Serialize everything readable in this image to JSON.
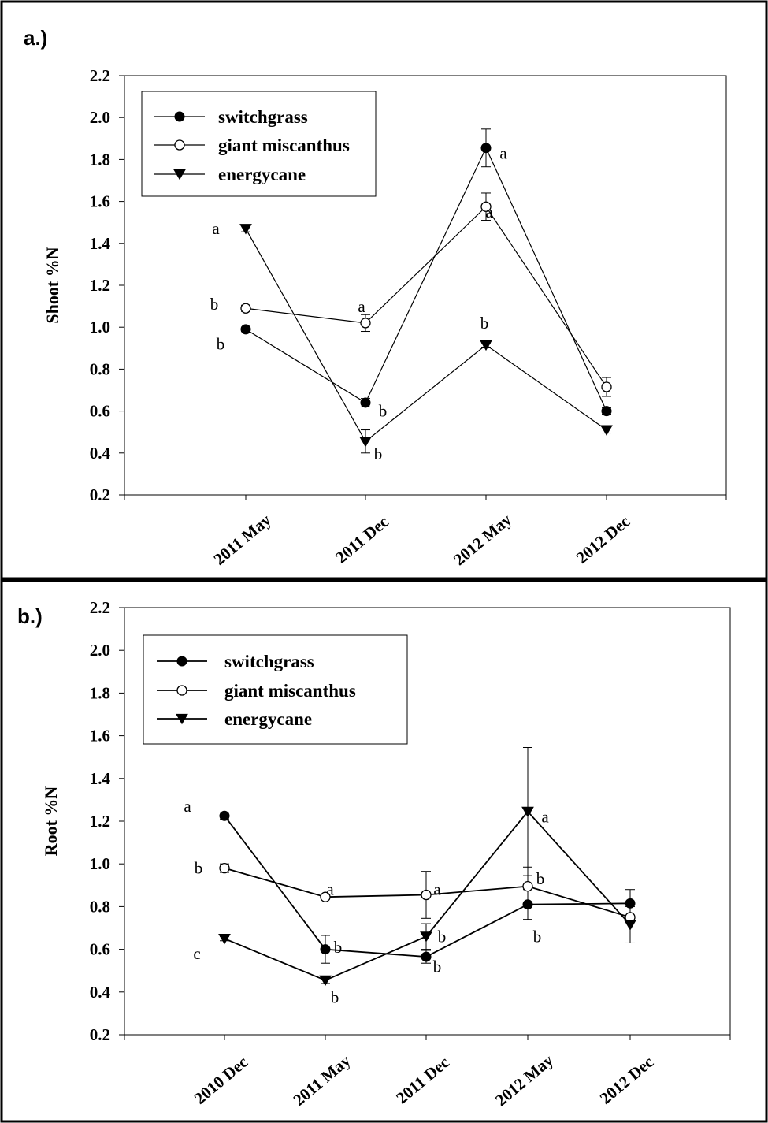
{
  "chart_data": [
    {
      "type": "line",
      "panel_label": "a.)",
      "ylabel": "Shoot %N",
      "ylim": [
        0.2,
        2.2
      ],
      "yticks": [
        "0.2",
        "0.4",
        "0.6",
        "0.8",
        "1.0",
        "1.2",
        "1.4",
        "1.6",
        "1.8",
        "2.0",
        "2.2"
      ],
      "categories": [
        "2011 May",
        "2011 Dec",
        "2012 May",
        "2012 Dec"
      ],
      "legend_position": "top-left",
      "series": [
        {
          "name": "switchgrass",
          "marker": "filled-circle",
          "values": [
            0.99,
            0.64,
            1.855,
            0.6
          ],
          "errors": [
            0.01,
            0.02,
            0.09,
            0.015
          ]
        },
        {
          "name": "giant miscanthus",
          "marker": "open-circle",
          "values": [
            1.09,
            1.02,
            1.575,
            0.715
          ],
          "errors": [
            0.015,
            0.04,
            0.065,
            0.045
          ]
        },
        {
          "name": "energycane",
          "marker": "triangle-down",
          "values": [
            1.47,
            0.455,
            0.915,
            0.51
          ],
          "errors": [
            0.015,
            0.055,
            0.01,
            0.015
          ]
        }
      ],
      "annotations": [
        {
          "text": "a",
          "category": 0,
          "value": 1.47
        },
        {
          "text": "b",
          "category": 0,
          "value": 1.11
        },
        {
          "text": "b",
          "category": 0,
          "value": 0.92
        },
        {
          "text": "a",
          "category": 1,
          "value": 1.06
        },
        {
          "text": "b",
          "category": 1,
          "value": 0.6
        },
        {
          "text": "b",
          "category": 1,
          "value": 0.41
        },
        {
          "text": "a",
          "category": 2,
          "value": 1.83
        },
        {
          "text": "a",
          "category": 2,
          "value": 1.55
        },
        {
          "text": "b",
          "category": 2,
          "value": 0.99
        }
      ]
    },
    {
      "type": "line",
      "panel_label": "b.)",
      "ylabel": "Root %N",
      "ylim": [
        0.2,
        2.2
      ],
      "yticks": [
        "0.2",
        "0.4",
        "0.6",
        "0.8",
        "1.0",
        "1.2",
        "1.4",
        "1.6",
        "1.8",
        "2.0",
        "2.2"
      ],
      "categories": [
        "2010 Dec",
        "2011 May",
        "2011 Dec",
        "2012 May",
        "2012 Dec"
      ],
      "legend_position": "top-left",
      "series": [
        {
          "name": "switchgrass",
          "marker": "filled-circle",
          "values": [
            1.225,
            0.6,
            0.565,
            0.81,
            0.815
          ],
          "errors": [
            0.015,
            0.065,
            0.03,
            0.07,
            0.065
          ]
        },
        {
          "name": "giant miscanthus",
          "marker": "open-circle",
          "values": [
            0.98,
            0.845,
            0.855,
            0.895,
            0.75
          ],
          "errors": [
            0.02,
            0.01,
            0.11,
            0.09,
            0.02
          ]
        },
        {
          "name": "energycane",
          "marker": "triangle-down",
          "values": [
            0.65,
            0.455,
            0.66,
            1.245,
            0.715
          ],
          "errors": [
            0.01,
            0.015,
            0.06,
            0.3,
            0.085
          ]
        }
      ],
      "annotations": [
        {
          "text": "a",
          "category": 0,
          "value": 1.27
        },
        {
          "text": "b",
          "category": 0,
          "value": 0.98
        },
        {
          "text": "c",
          "category": 0,
          "value": 0.58
        },
        {
          "text": "a",
          "category": 1,
          "value": 0.88
        },
        {
          "text": "b",
          "category": 1,
          "value": 0.61
        },
        {
          "text": "b",
          "category": 1,
          "value": 0.39
        },
        {
          "text": "a",
          "category": 2,
          "value": 0.88
        },
        {
          "text": "b",
          "category": 2,
          "value": 0.66
        },
        {
          "text": "b",
          "category": 2,
          "value": 0.52
        },
        {
          "text": "a",
          "category": 3,
          "value": 1.22
        },
        {
          "text": "b",
          "category": 3,
          "value": 0.93
        },
        {
          "text": "b",
          "category": 3,
          "value": 0.66
        }
      ]
    }
  ]
}
